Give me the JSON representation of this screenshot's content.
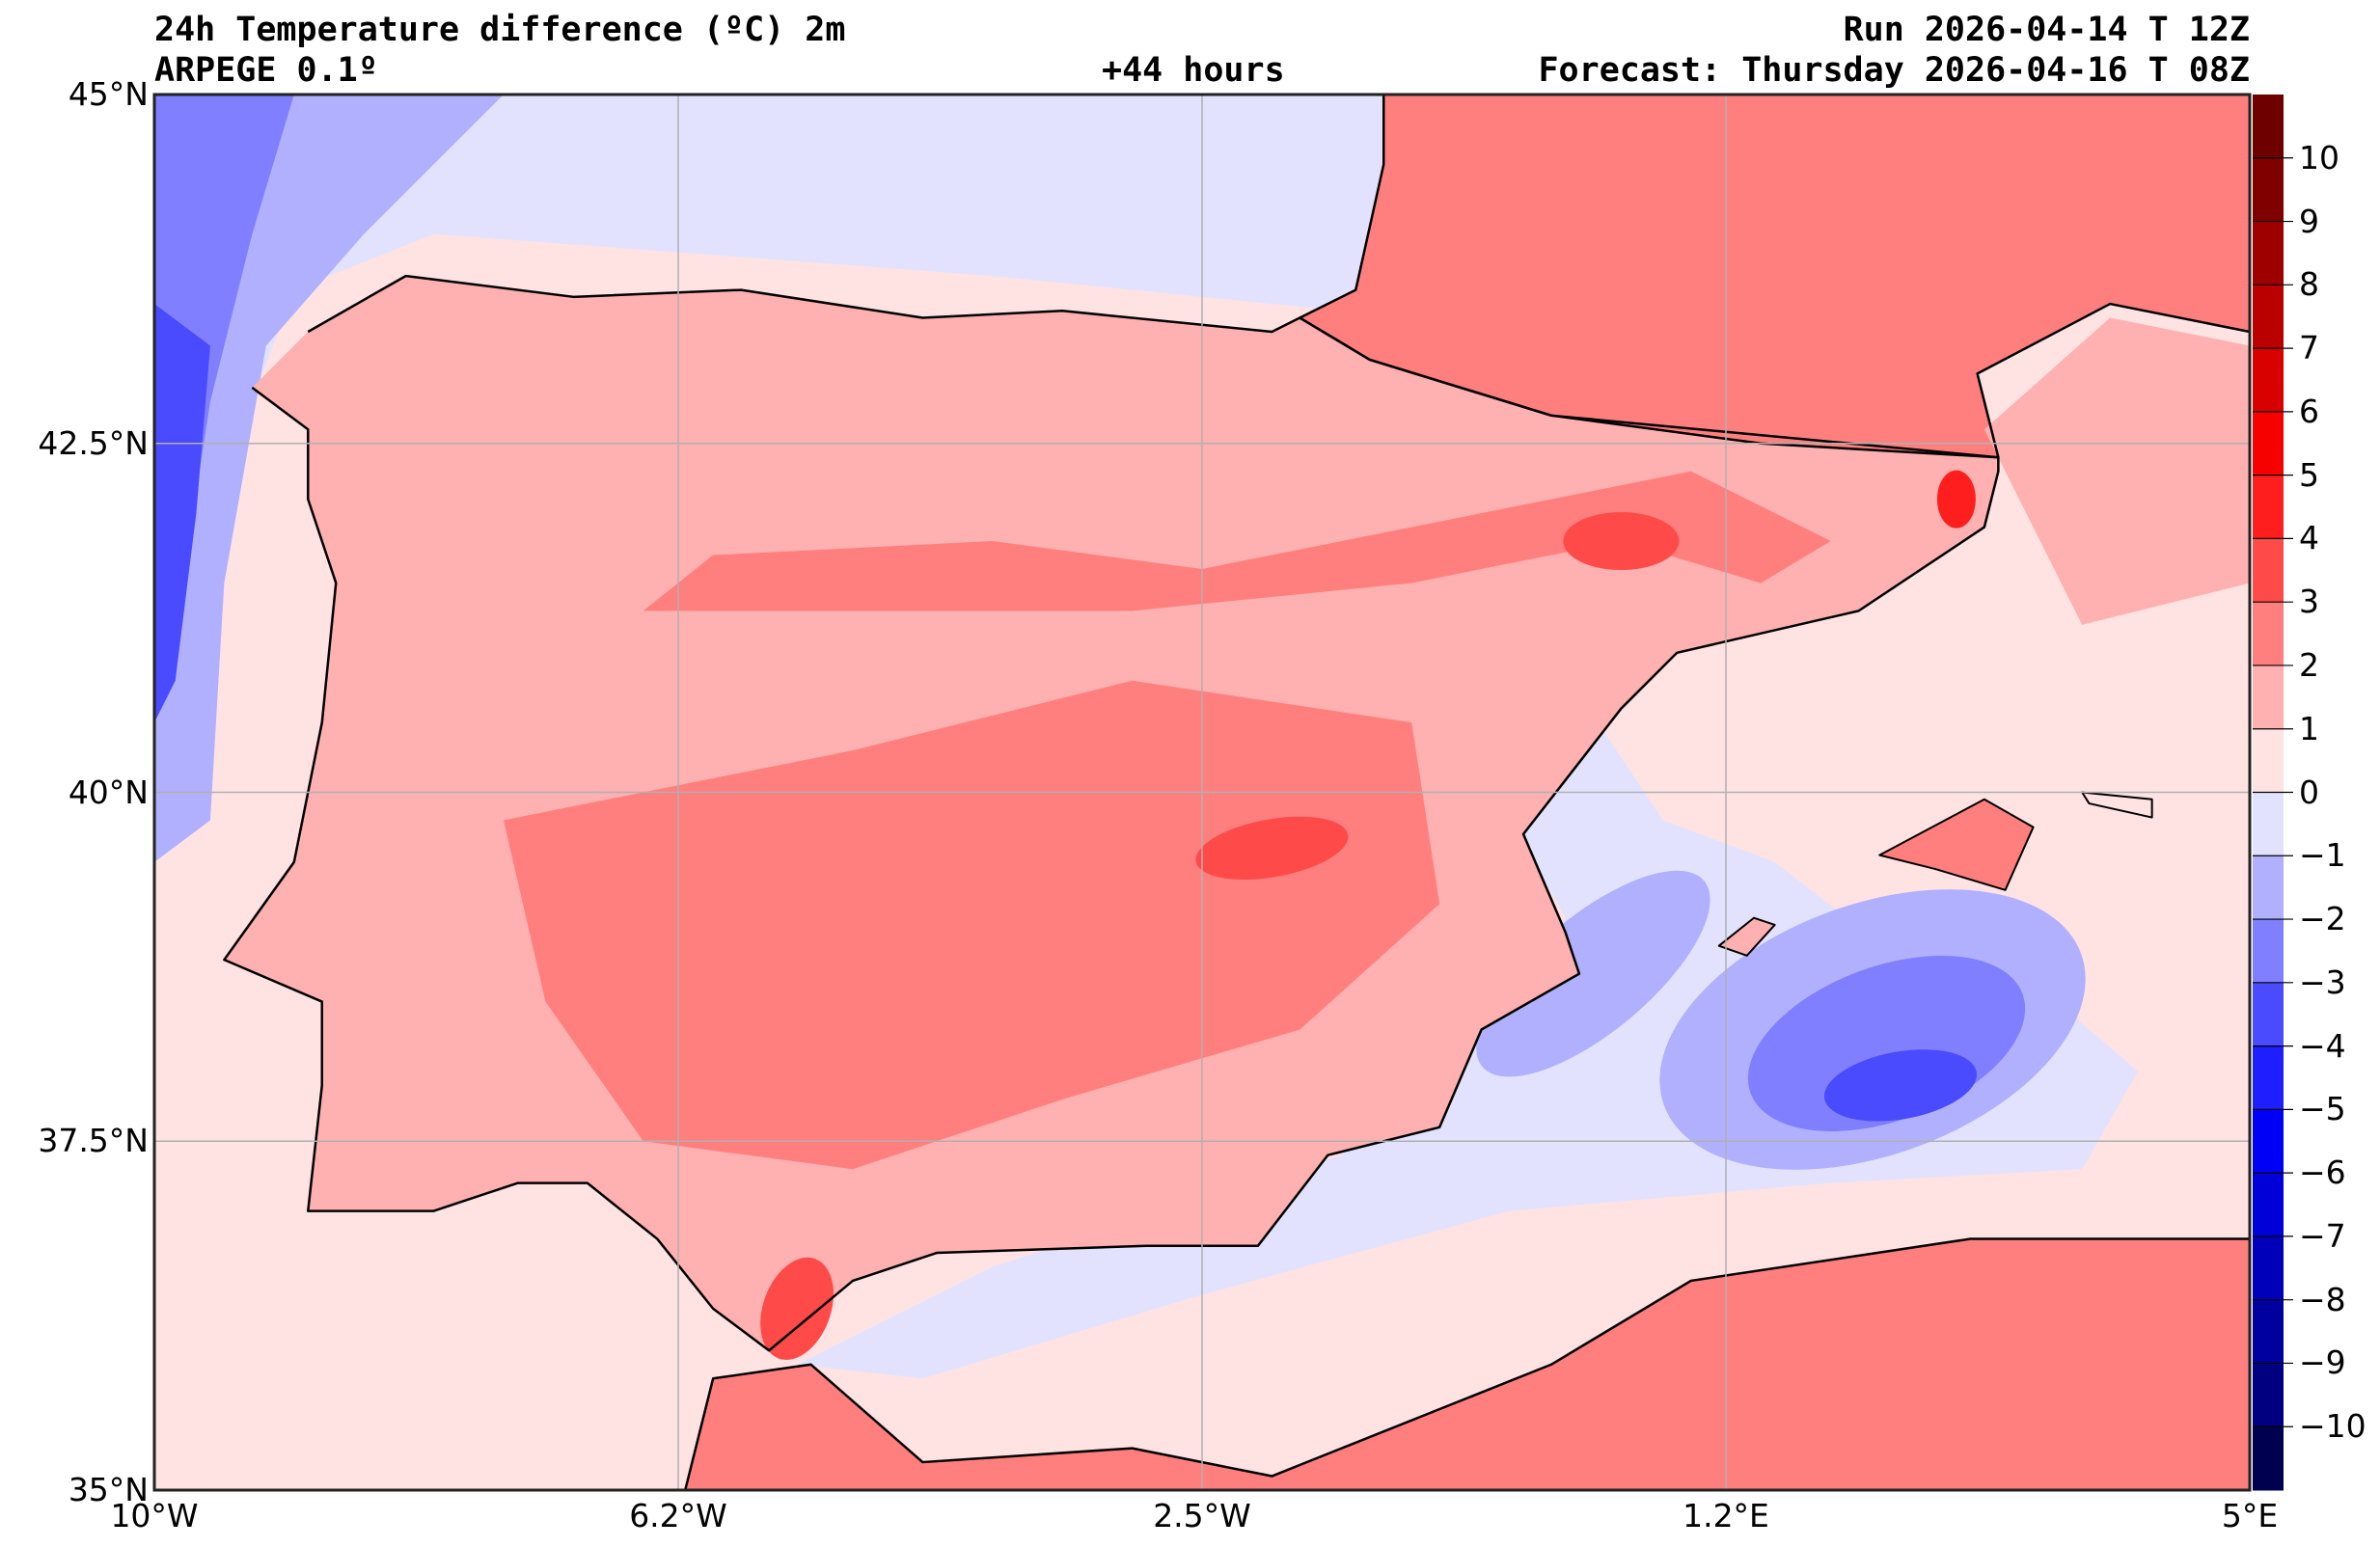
{
  "header": {
    "title": "24h Temperature difference (ºC) 2m",
    "model": "ARPEGE 0.1º",
    "lead_time": "+44 hours",
    "run": "Run 2026-04-14 T 12Z",
    "forecast": "Forecast: Thursday 2026-04-16 T 08Z"
  },
  "axes": {
    "lat_labels": [
      "45°N",
      "42.5°N",
      "40°N",
      "37.5°N",
      "35°N"
    ],
    "lat_values": [
      45,
      42.5,
      40,
      37.5,
      35
    ],
    "lon_labels": [
      "10°W",
      "6.2°W",
      "2.5°W",
      "1.2°E",
      "5°E"
    ],
    "lon_values": [
      -10,
      -6.25,
      -2.5,
      1.25,
      5
    ],
    "extent": {
      "lon": [
        -10,
        5
      ],
      "lat": [
        35,
        45
      ]
    }
  },
  "colorbar": {
    "labels": [
      "10",
      "9",
      "8",
      "7",
      "6",
      "5",
      "4",
      "3",
      "2",
      "1",
      "0",
      "−1",
      "−2",
      "−3",
      "−4",
      "−5",
      "−6",
      "−7",
      "−8",
      "−9",
      "−10"
    ],
    "values": [
      10,
      9,
      8,
      7,
      6,
      5,
      4,
      3,
      2,
      1,
      0,
      -1,
      -2,
      -3,
      -4,
      -5,
      -6,
      -7,
      -8,
      -9,
      -10
    ],
    "range": [
      -11,
      11
    ],
    "colors_top_to_bottom": [
      "#6e0000",
      "#800000",
      "#9e0000",
      "#bb0000",
      "#d90000",
      "#f60000",
      "#ff1e1e",
      "#ff4a4a",
      "#ff7f7f",
      "#ffb0b0",
      "#ffe2e2",
      "#e2e2ff",
      "#b0b0ff",
      "#7f7fff",
      "#4a4aff",
      "#1e1eff",
      "#0000f6",
      "#0000d9",
      "#0000bb",
      "#00009e",
      "#000080",
      "#000050"
    ]
  }
}
